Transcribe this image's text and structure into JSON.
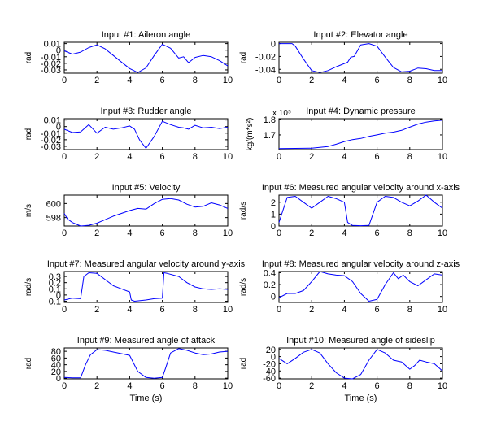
{
  "figure": {
    "background": "#ffffff",
    "line_color": "#0000ff",
    "axis_color": "#000000"
  },
  "chart_data": [
    {
      "type": "line",
      "title": "Input #1: Aileron angle",
      "ylabel": "rad",
      "xlabel": "",
      "xlim": [
        0,
        10
      ],
      "ylim": [
        -0.035,
        0.012
      ],
      "xticks": [
        0,
        2,
        4,
        6,
        8,
        10
      ],
      "xtick_labels": [
        "0",
        "2",
        "4",
        "6",
        "8",
        "10"
      ],
      "yticks": [
        0.01,
        0,
        -0.01,
        -0.02,
        -0.03
      ],
      "ytick_labels": [
        "0.01",
        "0",
        "-0.01",
        "-0.02",
        "-0.03"
      ],
      "series": [
        {
          "x": [
            0,
            0.5,
            1.0,
            1.5,
            2.0,
            2.5,
            3.0,
            3.5,
            4.0,
            4.5,
            5.0,
            5.5,
            6.0,
            6.5,
            7.0,
            7.3,
            7.6,
            8.0,
            8.5,
            9.0,
            9.5,
            10
          ],
          "y": [
            -0.001,
            -0.006,
            -0.003,
            0.004,
            0.008,
            0.002,
            -0.008,
            -0.018,
            -0.028,
            -0.034,
            -0.027,
            -0.008,
            0.009,
            0.003,
            -0.012,
            -0.01,
            -0.019,
            -0.011,
            -0.008,
            -0.01,
            -0.016,
            -0.024
          ]
        }
      ]
    },
    {
      "type": "line",
      "title": "Input #2: Elevator angle",
      "ylabel": "rad",
      "xlabel": "",
      "xlim": [
        0,
        10
      ],
      "ylim": [
        -0.046,
        0.002
      ],
      "xticks": [
        0,
        2,
        4,
        6,
        8,
        10
      ],
      "xtick_labels": [
        "0",
        "2",
        "4",
        "6",
        "8",
        "10"
      ],
      "yticks": [
        0,
        -0.02,
        -0.04
      ],
      "ytick_labels": [
        "0",
        "-0.02",
        "-0.04"
      ],
      "series": [
        {
          "x": [
            0,
            0.5,
            0.8,
            1.0,
            1.5,
            2.0,
            2.5,
            3.0,
            3.5,
            4.0,
            4.2,
            4.4,
            4.6,
            5.0,
            5.5,
            6.0,
            6.5,
            7.0,
            7.5,
            8.0,
            8.5,
            9.0,
            9.5,
            10
          ],
          "y": [
            0,
            0,
            0,
            -0.004,
            -0.024,
            -0.042,
            -0.045,
            -0.042,
            -0.036,
            -0.031,
            -0.029,
            -0.021,
            -0.02,
            -0.002,
            0,
            -0.004,
            -0.021,
            -0.037,
            -0.044,
            -0.043,
            -0.038,
            -0.039,
            -0.042,
            -0.042
          ]
        }
      ]
    },
    {
      "type": "line",
      "title": "Input #3: Rudder angle",
      "ylabel": "rad",
      "xlabel": "",
      "xlim": [
        0,
        10
      ],
      "ylim": [
        -0.035,
        0.012
      ],
      "xticks": [
        0,
        2,
        4,
        6,
        8,
        10
      ],
      "xtick_labels": [
        "0",
        "2",
        "4",
        "6",
        "8",
        "10"
      ],
      "yticks": [
        0.01,
        0,
        -0.01,
        -0.02,
        -0.03
      ],
      "ytick_labels": [
        "0.01",
        "0",
        "-0.01",
        "-0.02",
        "-0.03"
      ],
      "series": [
        {
          "x": [
            0,
            0.5,
            1.0,
            1.5,
            2.0,
            2.5,
            3.0,
            3.5,
            4.0,
            4.3,
            4.6,
            5.0,
            5.5,
            6.0,
            6.5,
            7.0,
            7.3,
            7.6,
            8.0,
            8.5,
            9.0,
            9.5,
            10
          ],
          "y": [
            -0.004,
            -0.009,
            -0.008,
            0.003,
            -0.01,
            -0.001,
            -0.004,
            -0.002,
            0.001,
            -0.004,
            -0.02,
            -0.033,
            -0.015,
            0.008,
            0.003,
            -0.001,
            -0.002,
            -0.004,
            0.002,
            -0.002,
            -0.001,
            -0.003,
            -0.001
          ]
        }
      ]
    },
    {
      "type": "line",
      "title": "Input #4: Dynamic pressure",
      "ylabel": "kg/(m*s²)",
      "y_scale_label": "x 10⁵",
      "xlabel": "",
      "xlim": [
        0,
        10
      ],
      "ylim": [
        1.605,
        1.805
      ],
      "xticks": [
        0,
        2,
        4,
        6,
        8,
        10
      ],
      "xtick_labels": [
        "0",
        "2",
        "4",
        "6",
        "8",
        "10"
      ],
      "yticks": [
        1.8,
        1.7
      ],
      "ytick_labels": [
        "1.8",
        "1.7"
      ],
      "series": [
        {
          "x": [
            0,
            1.0,
            2.0,
            3.0,
            3.5,
            4.0,
            4.5,
            5.0,
            5.5,
            6.0,
            6.5,
            7.0,
            7.5,
            8.0,
            8.5,
            9.0,
            9.5,
            10
          ],
          "y": [
            1.612,
            1.613,
            1.614,
            1.625,
            1.64,
            1.657,
            1.67,
            1.677,
            1.69,
            1.7,
            1.712,
            1.718,
            1.73,
            1.75,
            1.77,
            1.783,
            1.79,
            1.795
          ]
        }
      ]
    },
    {
      "type": "line",
      "title": "Input #5: Velocity",
      "ylabel": "m/s",
      "xlabel": "",
      "xlim": [
        0,
        10
      ],
      "ylim": [
        596.8,
        601.2
      ],
      "xticks": [
        0,
        2,
        4,
        6,
        8,
        10
      ],
      "xtick_labels": [
        "0",
        "2",
        "4",
        "6",
        "8",
        "10"
      ],
      "yticks": [
        600,
        598
      ],
      "ytick_labels": [
        "600",
        "598"
      ],
      "series": [
        {
          "x": [
            0,
            0.2,
            0.5,
            1.0,
            1.5,
            2.0,
            2.5,
            3.0,
            3.5,
            4.0,
            4.5,
            5.0,
            5.5,
            6.0,
            6.5,
            7.0,
            7.5,
            8.0,
            8.5,
            9.0,
            9.5,
            10
          ],
          "y": [
            598.6,
            597.8,
            597.3,
            596.8,
            596.9,
            597.2,
            597.7,
            598.2,
            598.6,
            599.0,
            599.3,
            599.2,
            600.0,
            600.6,
            600.7,
            600.5,
            599.9,
            599.5,
            599.6,
            600.1,
            599.8,
            599.3
          ]
        }
      ]
    },
    {
      "type": "line",
      "title": "Input #6: Measured angular velocity around x-axis",
      "ylabel": "rad/s",
      "xlabel": "",
      "xlim": [
        0,
        10
      ],
      "ylim": [
        0,
        2.6
      ],
      "xticks": [
        0,
        2,
        4,
        6,
        8,
        10
      ],
      "xtick_labels": [
        "0",
        "2",
        "4",
        "6",
        "8",
        "10"
      ],
      "yticks": [
        2,
        1,
        0
      ],
      "ytick_labels": [
        "2",
        "1",
        "0"
      ],
      "series": [
        {
          "x": [
            0,
            0.5,
            1.0,
            1.5,
            2.0,
            2.5,
            3.0,
            3.5,
            4.0,
            4.2,
            4.5,
            5.0,
            5.5,
            6.0,
            6.5,
            7.0,
            7.5,
            8.0,
            8.5,
            9.0,
            9.5,
            10
          ],
          "y": [
            0.3,
            2.4,
            2.5,
            2.0,
            1.5,
            2.0,
            2.5,
            2.3,
            2.0,
            0.3,
            0.05,
            0.03,
            0.05,
            2.0,
            2.5,
            2.4,
            2.0,
            1.7,
            2.1,
            2.6,
            2.0,
            1.5
          ]
        }
      ]
    },
    {
      "type": "line",
      "title": "Input #7: Measured angular velocity around y-axis",
      "ylabel": "rad/s",
      "xlabel": "",
      "xlim": [
        0,
        10
      ],
      "ylim": [
        -0.12,
        0.38
      ],
      "xticks": [
        0,
        2,
        4,
        6,
        8,
        10
      ],
      "xtick_labels": [
        "0",
        "2",
        "4",
        "6",
        "8",
        "10"
      ],
      "yticks": [
        0.3,
        0.2,
        0.1,
        0,
        -0.1
      ],
      "ytick_labels": [
        "0.3",
        "0.2",
        "0.1",
        "0",
        "-0.1"
      ],
      "series": [
        {
          "x": [
            0,
            0.5,
            1.0,
            1.2,
            1.5,
            2.0,
            2.5,
            3.0,
            3.5,
            4.0,
            4.1,
            4.3,
            5.0,
            5.5,
            6.0,
            6.1,
            6.3,
            7.0,
            7.5,
            8.0,
            8.5,
            9.0,
            9.5,
            10
          ],
          "y": [
            -0.08,
            -0.05,
            -0.06,
            0.3,
            0.36,
            0.35,
            0.25,
            0.15,
            0.1,
            0.05,
            -0.08,
            -0.1,
            -0.08,
            -0.06,
            -0.05,
            0.36,
            0.35,
            0.3,
            0.2,
            0.13,
            0.1,
            0.09,
            0.1,
            0.09
          ]
        }
      ]
    },
    {
      "type": "line",
      "title": "Input #8: Measured angular velocity around z-axis",
      "ylabel": "rad/s",
      "xlabel": "",
      "xlim": [
        0,
        10
      ],
      "ylim": [
        -0.1,
        0.42
      ],
      "xticks": [
        0,
        2,
        4,
        6,
        8,
        10
      ],
      "xtick_labels": [
        "0",
        "2",
        "4",
        "6",
        "8",
        "10"
      ],
      "yticks": [
        0.4,
        0.2,
        0
      ],
      "ytick_labels": [
        "0.4",
        "0.2",
        "0"
      ],
      "series": [
        {
          "x": [
            0,
            0.5,
            1.0,
            1.5,
            2.0,
            2.5,
            3.0,
            3.5,
            4.0,
            4.5,
            5.0,
            5.5,
            6.0,
            6.5,
            7.0,
            7.3,
            7.6,
            8.0,
            8.5,
            9.0,
            9.5,
            10
          ],
          "y": [
            -0.02,
            0.05,
            0.05,
            0.1,
            0.25,
            0.42,
            0.38,
            0.36,
            0.35,
            0.25,
            0.05,
            -0.08,
            -0.05,
            0.2,
            0.4,
            0.3,
            0.36,
            0.25,
            0.18,
            0.28,
            0.38,
            0.36
          ]
        }
      ]
    },
    {
      "type": "line",
      "title": "Input #9: Measured angle of attack",
      "ylabel": "rad",
      "xlabel": "Time (s)",
      "xlim": [
        0,
        10
      ],
      "ylim": [
        -2,
        90
      ],
      "xticks": [
        0,
        2,
        4,
        6,
        8,
        10
      ],
      "xtick_labels": [
        "0",
        "2",
        "4",
        "6",
        "8",
        "10"
      ],
      "yticks": [
        80,
        60,
        40,
        20,
        0
      ],
      "ytick_labels": [
        "80",
        "60",
        "40",
        "20",
        "0"
      ],
      "series": [
        {
          "x": [
            0,
            0.5,
            1.0,
            1.3,
            1.6,
            2.0,
            2.5,
            3.0,
            3.5,
            4.0,
            4.5,
            5.0,
            5.5,
            6.0,
            6.2,
            6.5,
            7.0,
            7.5,
            8.0,
            8.5,
            9.0,
            9.5,
            10
          ],
          "y": [
            2,
            1,
            1,
            40,
            70,
            85,
            83,
            78,
            73,
            68,
            20,
            2,
            0,
            2,
            30,
            75,
            88,
            83,
            75,
            70,
            72,
            78,
            80
          ]
        }
      ]
    },
    {
      "type": "line",
      "title": "Input #10: Measured angle of sideslip",
      "ylabel": "rad",
      "xlabel": "Time (s)",
      "xlim": [
        0,
        10
      ],
      "ylim": [
        -62,
        24
      ],
      "xticks": [
        0,
        2,
        4,
        6,
        8,
        10
      ],
      "xtick_labels": [
        "0",
        "2",
        "4",
        "6",
        "8",
        "10"
      ],
      "yticks": [
        20,
        0,
        -20,
        -40,
        -60
      ],
      "ytick_labels": [
        "20",
        "0",
        "-20",
        "-40",
        "-60"
      ],
      "series": [
        {
          "x": [
            0,
            0.5,
            1.0,
            1.5,
            2.0,
            2.5,
            3.0,
            3.5,
            4.0,
            4.5,
            5.0,
            5.5,
            6.0,
            6.5,
            7.0,
            7.5,
            8.0,
            8.3,
            8.6,
            9.0,
            9.5,
            10
          ],
          "y": [
            -5,
            -20,
            -5,
            12,
            20,
            10,
            -20,
            -45,
            -60,
            -62,
            -50,
            -10,
            20,
            10,
            -10,
            -15,
            -35,
            -25,
            -10,
            -15,
            -20,
            -40
          ]
        }
      ]
    }
  ]
}
